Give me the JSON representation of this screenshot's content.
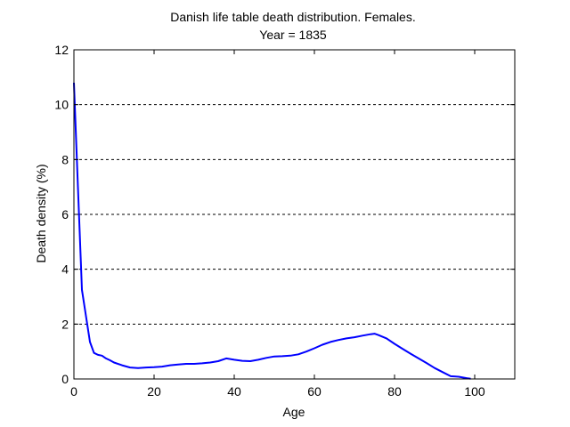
{
  "chart_data": {
    "type": "line",
    "title": "Danish life table death distribution. Females.",
    "subtitle": "Year = 1835",
    "xlabel": "Age",
    "ylabel": "Death density (%)",
    "xlim": [
      0,
      110
    ],
    "ylim": [
      0,
      12
    ],
    "xticks": [
      0,
      20,
      40,
      60,
      80,
      100
    ],
    "yticks": [
      0,
      2,
      4,
      6,
      8,
      10,
      12
    ],
    "grid": "horizontal dashed",
    "series": [
      {
        "color": "#0000ff",
        "x": [
          0,
          1,
          2,
          3,
          4,
          5,
          6,
          7,
          8,
          9,
          10,
          12,
          14,
          16,
          18,
          20,
          22,
          24,
          26,
          28,
          30,
          32,
          34,
          36,
          38,
          40,
          42,
          44,
          46,
          48,
          50,
          52,
          54,
          56,
          58,
          60,
          62,
          64,
          66,
          68,
          70,
          72,
          74,
          75,
          76,
          78,
          80,
          82,
          84,
          86,
          88,
          90,
          92,
          94,
          96,
          98,
          99
        ],
        "values": [
          10.8,
          7.0,
          3.25,
          2.3,
          1.35,
          0.95,
          0.88,
          0.85,
          0.75,
          0.68,
          0.6,
          0.5,
          0.42,
          0.4,
          0.42,
          0.43,
          0.45,
          0.5,
          0.53,
          0.55,
          0.55,
          0.57,
          0.6,
          0.65,
          0.75,
          0.7,
          0.66,
          0.65,
          0.7,
          0.77,
          0.82,
          0.83,
          0.85,
          0.9,
          1.0,
          1.12,
          1.25,
          1.35,
          1.42,
          1.48,
          1.52,
          1.58,
          1.63,
          1.65,
          1.6,
          1.48,
          1.28,
          1.1,
          0.92,
          0.75,
          0.58,
          0.4,
          0.25,
          0.1,
          0.08,
          0.03,
          0.01
        ]
      }
    ]
  }
}
